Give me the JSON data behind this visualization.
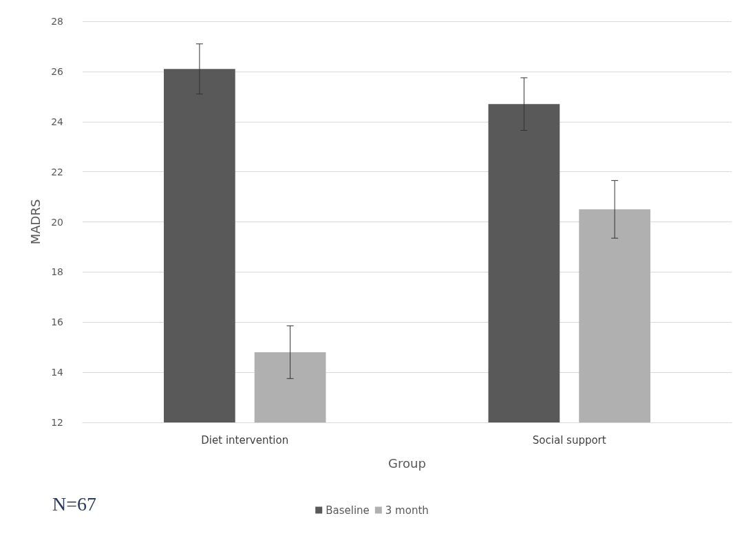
{
  "chart_data": {
    "type": "bar",
    "xlabel": "Group",
    "ylabel": "MADRS",
    "categories": [
      "Diet intervention",
      "Social support"
    ],
    "series": [
      {
        "name": "Baseline",
        "color": "#595959",
        "values": [
          26.1,
          24.7
        ],
        "errors": [
          1.0,
          1.05
        ]
      },
      {
        "name": "3 month",
        "color": "#b0b0b0",
        "values": [
          14.8,
          20.5
        ],
        "errors": [
          1.05,
          1.15
        ]
      }
    ],
    "ylim": [
      12,
      28
    ],
    "yticks": [
      12,
      14,
      16,
      18,
      20,
      22,
      24,
      26,
      28
    ],
    "grid": "y",
    "legend": "bottom",
    "annotations": [
      "N=67"
    ]
  }
}
